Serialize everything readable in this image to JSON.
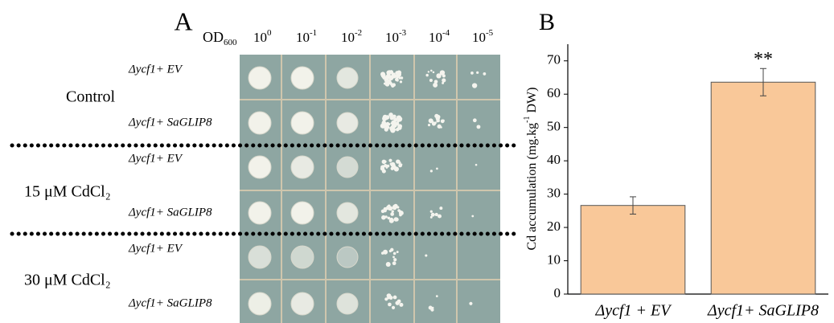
{
  "panel_a": {
    "label": "A",
    "od": {
      "base": "OD",
      "sub": "600"
    },
    "dilutions": [
      {
        "base": "10",
        "exponent": "0"
      },
      {
        "base": "10",
        "exponent": "-1"
      },
      {
        "base": "10",
        "exponent": "-2"
      },
      {
        "base": "10",
        "exponent": "-3"
      },
      {
        "base": "10",
        "exponent": "-4"
      },
      {
        "base": "10",
        "exponent": "-5"
      }
    ],
    "conditions": [
      {
        "name": "Control",
        "strains": [
          "Δycf1+ EV",
          "Δycf1+ SaGLIP8"
        ]
      },
      {
        "name": "15 μM CdCl₂",
        "strains": [
          "Δycf1+ EV",
          "Δycf1+ SaGLIP8"
        ]
      },
      {
        "name": "30 μM CdCl₂",
        "strains": [
          "Δycf1+ EV",
          "Δycf1+ SaGLIP8"
        ]
      }
    ]
  },
  "chart_data": {
    "type": "bar",
    "label": "B",
    "y_label": {
      "text": "Cd accumulation (mg.kg",
      "sup": "-1",
      "tail": " DW)"
    },
    "categories": [
      "Δycf1 + EV",
      "Δycf1+ SaGLIP8"
    ],
    "values": [
      26.6,
      63.6
    ],
    "errors": [
      2.6,
      4.1
    ],
    "significance": [
      null,
      "**"
    ],
    "color": "#f9c899",
    "ylim": [
      0,
      75
    ],
    "yticks": [
      0,
      10,
      20,
      30,
      40,
      50,
      60,
      70
    ]
  }
}
